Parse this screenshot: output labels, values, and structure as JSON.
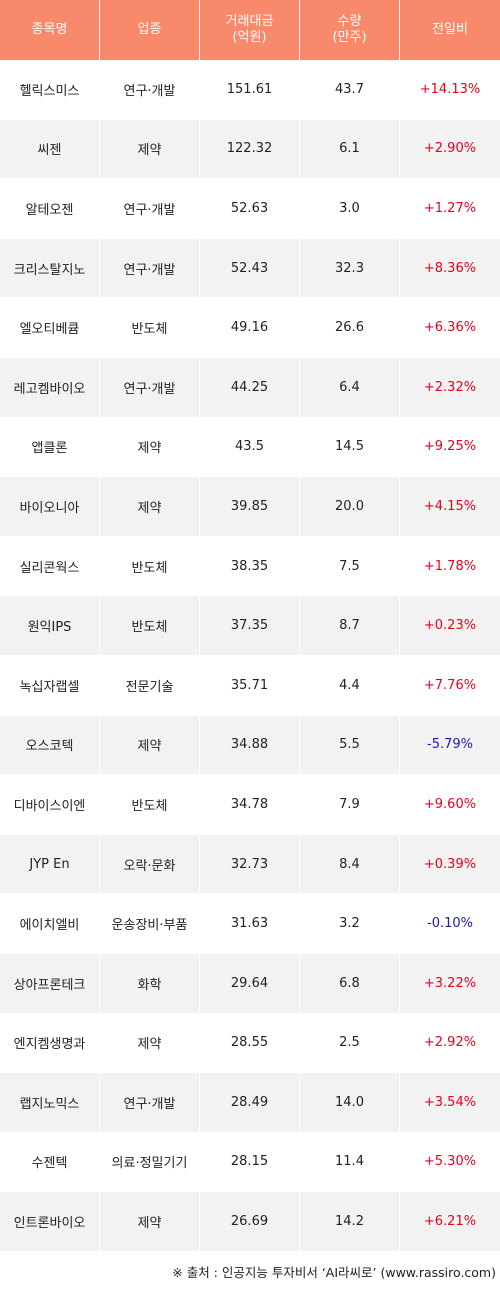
{
  "header": {
    "name": "종목명",
    "sector": "업종",
    "trade_value": [
      "거래대금",
      "(억원)"
    ],
    "volume": [
      "수량",
      "(만주)"
    ],
    "change": "전일비"
  },
  "rows": [
    {
      "name": "헬릭스미스",
      "sector": "연구·개발",
      "trade_value": "151.61",
      "volume": "43.7",
      "change": "+14.13%",
      "dir": "up"
    },
    {
      "name": "씨젠",
      "sector": "제약",
      "trade_value": "122.32",
      "volume": "6.1",
      "change": "+2.90%",
      "dir": "up"
    },
    {
      "name": "알테오젠",
      "sector": "연구·개발",
      "trade_value": "52.63",
      "volume": "3.0",
      "change": "+1.27%",
      "dir": "up"
    },
    {
      "name": "크리스탈지노",
      "sector": "연구·개발",
      "trade_value": "52.43",
      "volume": "32.3",
      "change": "+8.36%",
      "dir": "up"
    },
    {
      "name": "엘오티베큠",
      "sector": "반도체",
      "trade_value": "49.16",
      "volume": "26.6",
      "change": "+6.36%",
      "dir": "up"
    },
    {
      "name": "레고켐바이오",
      "sector": "연구·개발",
      "trade_value": "44.25",
      "volume": "6.4",
      "change": "+2.32%",
      "dir": "up"
    },
    {
      "name": "앱클론",
      "sector": "제약",
      "trade_value": "43.5",
      "volume": "14.5",
      "change": "+9.25%",
      "dir": "up"
    },
    {
      "name": "바이오니아",
      "sector": "제약",
      "trade_value": "39.85",
      "volume": "20.0",
      "change": "+4.15%",
      "dir": "up"
    },
    {
      "name": "실리콘웍스",
      "sector": "반도체",
      "trade_value": "38.35",
      "volume": "7.5",
      "change": "+1.78%",
      "dir": "up"
    },
    {
      "name": "원익IPS",
      "sector": "반도체",
      "trade_value": "37.35",
      "volume": "8.7",
      "change": "+0.23%",
      "dir": "up"
    },
    {
      "name": "녹십자랩셀",
      "sector": "전문기술",
      "trade_value": "35.71",
      "volume": "4.4",
      "change": "+7.76%",
      "dir": "up"
    },
    {
      "name": "오스코텍",
      "sector": "제약",
      "trade_value": "34.88",
      "volume": "5.5",
      "change": "-5.79%",
      "dir": "down"
    },
    {
      "name": "디바이스이엔",
      "sector": "반도체",
      "trade_value": "34.78",
      "volume": "7.9",
      "change": "+9.60%",
      "dir": "up"
    },
    {
      "name": "JYP En",
      "sector": "오락·문화",
      "trade_value": "32.73",
      "volume": "8.4",
      "change": "+0.39%",
      "dir": "up"
    },
    {
      "name": "에이치엘비",
      "sector": "운송장비·부품",
      "trade_value": "31.63",
      "volume": "3.2",
      "change": "-0.10%",
      "dir": "down"
    },
    {
      "name": "상아프론테크",
      "sector": "화학",
      "trade_value": "29.64",
      "volume": "6.8",
      "change": "+3.22%",
      "dir": "up"
    },
    {
      "name": "엔지켐생명과",
      "sector": "제약",
      "trade_value": "28.55",
      "volume": "2.5",
      "change": "+2.92%",
      "dir": "up"
    },
    {
      "name": "랩지노믹스",
      "sector": "연구·개발",
      "trade_value": "28.49",
      "volume": "14.0",
      "change": "+3.54%",
      "dir": "up"
    },
    {
      "name": "수젠텍",
      "sector": "의료·정밀기기",
      "trade_value": "28.15",
      "volume": "11.4",
      "change": "+5.30%",
      "dir": "up"
    },
    {
      "name": "인트론바이오",
      "sector": "제약",
      "trade_value": "26.69",
      "volume": "14.2",
      "change": "+6.21%",
      "dir": "up"
    }
  ],
  "source": "※ 출처 : 인공지능 투자비서 ‘AI라씨로’ (www.rassiro.com)",
  "colors": {
    "header_bg": "#f9896b",
    "row_alt": "#f2f2f2",
    "up": "#e8001c",
    "down": "#1b1bb8"
  }
}
